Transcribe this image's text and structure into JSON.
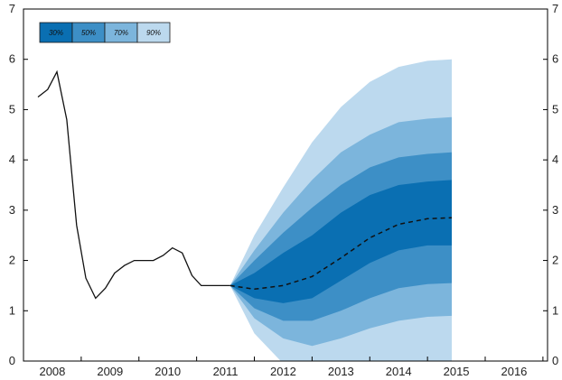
{
  "chart_data": {
    "type": "area",
    "title": "",
    "xlabel": "",
    "ylabel": "",
    "ylim": [
      0,
      7
    ],
    "yticks": [
      0,
      1,
      2,
      3,
      4,
      5,
      6,
      7
    ],
    "x_start_year": 2008,
    "x_end_year": 2016,
    "categories": [
      "2008",
      "2009",
      "2010",
      "2011",
      "2012",
      "2013",
      "2014",
      "2015",
      "2016"
    ],
    "legend": {
      "placement": "top-left",
      "entries": [
        "30%",
        "50%",
        "70%",
        "90%"
      ]
    },
    "colors": {
      "band_30": "#0a6fb2",
      "band_50": "#3d8fc6",
      "band_70": "#7cb5dc",
      "band_90": "#bcd9ee",
      "line": "#111111",
      "axis": "#000000"
    },
    "history": {
      "x": [
        2007.75,
        2007.92,
        2008.08,
        2008.25,
        2008.42,
        2008.58,
        2008.75,
        2008.92,
        2009.08,
        2009.25,
        2009.42,
        2009.58,
        2009.75,
        2009.92,
        2010.08,
        2010.25,
        2010.42,
        2010.58,
        2010.75,
        2010.92,
        2011.08,
        2011.25,
        2011.42,
        2011.58,
        2011.75,
        2011.92,
        2012.08,
        2012.25,
        2012.42,
        2012.58
      ],
      "y": [
        5.25,
        5.4,
        5.75,
        4.8,
        2.7,
        1.65,
        1.25,
        1.45,
        1.75,
        1.9,
        2.0,
        2.0,
        2.0,
        2.1,
        2.25,
        2.15,
        1.7,
        1.5,
        1.5,
        1.5,
        1.5,
        null,
        null,
        null,
        null,
        null,
        null,
        null,
        null,
        null
      ]
    },
    "history_points": [
      [
        2007.75,
        5.25
      ],
      [
        2007.92,
        5.4
      ],
      [
        2008.08,
        5.75
      ],
      [
        2008.25,
        4.8
      ],
      [
        2008.42,
        2.7
      ],
      [
        2008.58,
        1.65
      ],
      [
        2008.75,
        1.25
      ],
      [
        2008.92,
        1.45
      ],
      [
        2009.08,
        1.75
      ],
      [
        2009.25,
        1.9
      ],
      [
        2009.42,
        2.0
      ],
      [
        2009.58,
        2.0
      ],
      [
        2009.75,
        2.0
      ],
      [
        2009.92,
        2.1
      ],
      [
        2010.08,
        2.25
      ],
      [
        2010.25,
        2.15
      ],
      [
        2010.42,
        1.7
      ],
      [
        2010.58,
        1.5
      ],
      [
        2010.75,
        1.5
      ],
      [
        2010.92,
        1.5
      ],
      [
        2011.08,
        1.5
      ]
    ],
    "forecast": {
      "x": [
        2011.08,
        2011.5,
        2012.0,
        2012.5,
        2013.0,
        2013.5,
        2014.0,
        2014.5,
        2014.92
      ],
      "median": [
        1.5,
        1.43,
        1.5,
        1.68,
        2.05,
        2.45,
        2.72,
        2.83,
        2.85
      ],
      "bands": [
        {
          "name": "90%",
          "lower": [
            1.5,
            0.55,
            -0.05,
            -0.3,
            -0.3,
            -0.2,
            -0.1,
            -0.05,
            0.0
          ],
          "upper": [
            1.5,
            2.5,
            3.45,
            4.35,
            5.05,
            5.55,
            5.85,
            5.97,
            6.0
          ]
        },
        {
          "name": "70%",
          "lower": [
            1.5,
            0.85,
            0.45,
            0.3,
            0.45,
            0.65,
            0.8,
            0.88,
            0.9
          ],
          "upper": [
            1.5,
            2.2,
            2.95,
            3.6,
            4.15,
            4.5,
            4.75,
            4.82,
            4.85
          ]
        },
        {
          "name": "50%",
          "lower": [
            1.5,
            1.05,
            0.8,
            0.8,
            1.0,
            1.25,
            1.45,
            1.53,
            1.55
          ],
          "upper": [
            1.5,
            2.0,
            2.55,
            3.05,
            3.5,
            3.85,
            4.05,
            4.12,
            4.15
          ]
        },
        {
          "name": "30%",
          "lower": [
            1.5,
            1.25,
            1.15,
            1.25,
            1.6,
            1.95,
            2.2,
            2.3,
            2.3
          ],
          "upper": [
            1.5,
            1.75,
            2.15,
            2.5,
            2.95,
            3.3,
            3.5,
            3.57,
            3.6
          ]
        }
      ]
    }
  }
}
